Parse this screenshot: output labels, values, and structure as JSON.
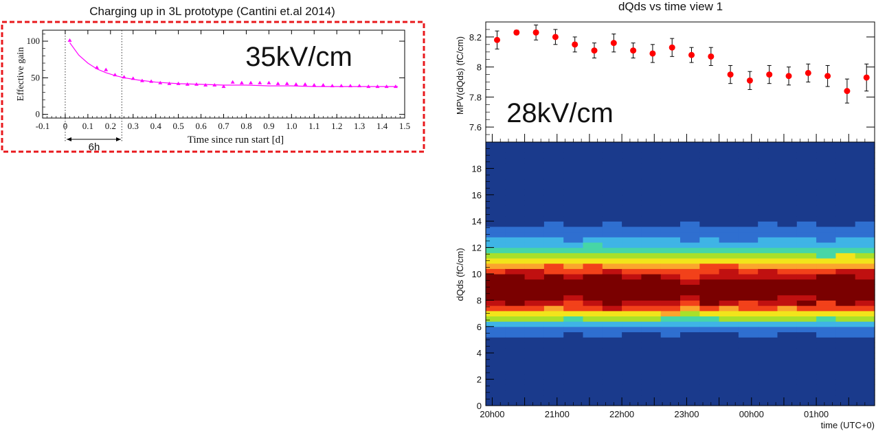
{
  "left_panel": {
    "title": "Charging up in 3L prototype (Cantini et.al 2014)",
    "field_label": "35kV/cm",
    "interval_label": "6h",
    "colors": {
      "frame": "#e8181c",
      "series": "#ff00ff"
    }
  },
  "right_panel": {
    "title": "dQds vs time view 1",
    "field_label": "28kV/cm",
    "colors": {
      "points": "#ff0000",
      "heat_low": "#1a3a8c",
      "heat_high": "#7a0000"
    }
  },
  "chart_data": [
    {
      "type": "scatter",
      "xlabel": "Time since run start [d]",
      "ylabel": "Effective gain",
      "xlim": [
        -0.1,
        1.5
      ],
      "ylim": [
        -5,
        115
      ],
      "x_ticks": [
        "-0.1",
        "0",
        "0.1",
        "0.2",
        "0.3",
        "0.4",
        "0.5",
        "0.6",
        "0.7",
        "0.8",
        "0.9",
        "1.0",
        "1.1",
        "1.2",
        "1.3",
        "1.4",
        "1.5"
      ],
      "y_ticks": [
        "0",
        "50",
        "100"
      ],
      "grid": false,
      "markers": "triangles with fitted curve",
      "vlines": [
        0,
        0.25
      ],
      "x": [
        0.02,
        0.14,
        0.18,
        0.22,
        0.26,
        0.3,
        0.34,
        0.38,
        0.42,
        0.46,
        0.5,
        0.54,
        0.58,
        0.62,
        0.66,
        0.7,
        0.74,
        0.78,
        0.82,
        0.86,
        0.9,
        0.94,
        0.98,
        1.02,
        1.06,
        1.1,
        1.14,
        1.18,
        1.22,
        1.26,
        1.3,
        1.34,
        1.38,
        1.42,
        1.46
      ],
      "y": [
        101,
        64,
        61,
        54,
        51,
        49,
        46,
        45,
        43,
        42,
        42,
        41,
        41,
        40,
        40,
        38,
        44,
        43,
        43,
        43,
        43,
        42,
        42,
        41,
        41,
        40,
        40,
        39,
        39,
        39,
        39,
        38,
        38,
        38,
        38
      ],
      "fit_curve": {
        "x": [
          0.02,
          0.06,
          0.1,
          0.14,
          0.18,
          0.22,
          0.26,
          0.32,
          0.4,
          0.5,
          0.6,
          0.7,
          0.8,
          0.9,
          1.0,
          1.1,
          1.2,
          1.3,
          1.4,
          1.47
        ],
        "y": [
          98,
          81,
          70,
          62,
          57,
          53,
          50,
          47,
          44,
          42,
          41,
          40,
          40,
          39,
          39,
          38,
          38,
          38,
          38,
          38
        ]
      }
    },
    {
      "type": "scatter",
      "title": "dQds vs time view 1",
      "xlabel": "",
      "ylabel": "MPV(dQds) (fC/cm)",
      "ylim": [
        7.5,
        8.3
      ],
      "y_ticks": [
        "7.6",
        "7.8",
        "8",
        "8.2"
      ],
      "error_bars": true,
      "x_hours": [
        0.15,
        0.75,
        1.35,
        1.95,
        2.55,
        3.15,
        3.75,
        4.35,
        4.95,
        5.55,
        6.15,
        6.75,
        7.35,
        7.95,
        8.55,
        9.15,
        9.75,
        10.35,
        10.95,
        11.55
      ],
      "y": [
        8.18,
        8.23,
        8.23,
        8.2,
        8.15,
        8.11,
        8.16,
        8.11,
        8.09,
        8.13,
        8.08,
        8.07,
        7.95,
        7.91,
        7.95,
        7.94,
        7.96,
        7.94,
        7.84,
        7.93
      ],
      "yerr": [
        0.06,
        0.015,
        0.05,
        0.05,
        0.05,
        0.05,
        0.06,
        0.05,
        0.06,
        0.06,
        0.05,
        0.06,
        0.06,
        0.06,
        0.06,
        0.06,
        0.06,
        0.07,
        0.08,
        0.09
      ]
    },
    {
      "type": "heatmap",
      "xlabel": "time (UTC+0)",
      "ylabel": "dQds (fC/cm)",
      "ylim": [
        0,
        20
      ],
      "x_ticks": [
        "20h00",
        "21h00",
        "22h00",
        "23h00",
        "00h00",
        "01h00"
      ],
      "y_ticks": [
        "0",
        "2",
        "4",
        "6",
        "8",
        "10",
        "12",
        "14",
        "16",
        "18"
      ],
      "x_range_hours": [
        -0.2,
        11.8
      ],
      "peak": 8.5,
      "colorscale": [
        "#1a3a8c",
        "#2f6fd0",
        "#3fb4e6",
        "#47d6a6",
        "#a8e02a",
        "#f2e41b",
        "#fba52d",
        "#f2411a",
        "#c01010",
        "#7a0000"
      ]
    }
  ]
}
